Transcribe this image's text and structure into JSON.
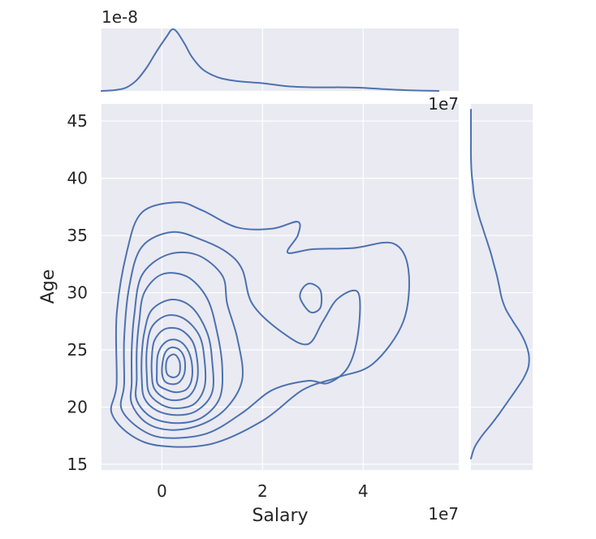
{
  "chart_data": {
    "type": "kde_jointplot",
    "x": {
      "label": "Salary",
      "lim": [
        -12000000,
        59000000
      ],
      "ticks": [
        0,
        20000000,
        40000000
      ],
      "tick_labels": [
        "0",
        "2",
        "4"
      ],
      "offset_text": "1e7"
    },
    "y": {
      "label": "Age",
      "lim": [
        14.5,
        46.5
      ],
      "ticks": [
        15,
        20,
        25,
        30,
        35,
        40,
        45
      ],
      "tick_labels": [
        "15",
        "20",
        "25",
        "30",
        "35",
        "40",
        "45"
      ]
    },
    "top_marginal": {
      "offset_text": "1e-8",
      "ylim": [
        0,
        6.1
      ],
      "density_x_1e7": [
        -1.2,
        -0.9,
        -0.7,
        -0.5,
        -0.3,
        -0.1,
        0.1,
        0.2,
        0.3,
        0.45,
        0.6,
        0.8,
        1.0,
        1.2,
        1.5,
        2.0,
        2.5,
        3.0,
        3.3,
        3.6,
        4.0,
        4.5,
        5.0,
        5.5
      ],
      "density_1e-8": [
        0.0,
        0.1,
        0.35,
        1.05,
        2.3,
        3.9,
        5.35,
        6.0,
        5.75,
        4.6,
        3.3,
        2.15,
        1.55,
        1.2,
        0.95,
        0.75,
        0.45,
        0.35,
        0.35,
        0.35,
        0.3,
        0.15,
        0.05,
        0.0
      ]
    },
    "right_marginal": {
      "density_y": [
        15.5,
        16.5,
        17.5,
        18.5,
        19.5,
        20.5,
        21.5,
        22.5,
        23.5,
        24.5,
        25.5,
        26.5,
        27.5,
        28.5,
        29.5,
        30.5,
        31.5,
        32.5,
        33.5,
        34.5,
        35.5,
        36.5,
        37.5,
        38.5,
        39.5,
        40.5,
        42,
        44,
        46
      ],
      "density": [
        0.0,
        0.06,
        0.18,
        0.33,
        0.47,
        0.6,
        0.73,
        0.85,
        0.93,
        0.94,
        0.89,
        0.8,
        0.68,
        0.57,
        0.5,
        0.46,
        0.42,
        0.37,
        0.32,
        0.26,
        0.2,
        0.14,
        0.09,
        0.05,
        0.03,
        0.01,
        0.0,
        0.0,
        0.0
      ]
    },
    "contours": [
      {
        "level": 1,
        "points": [
          [
            -0.9,
            22.0
          ],
          [
            -1.0,
            19.5
          ],
          [
            -0.6,
            17.5
          ],
          [
            0.0,
            16.6
          ],
          [
            1.0,
            16.8
          ],
          [
            2.0,
            18.8
          ],
          [
            2.8,
            21.5
          ],
          [
            3.5,
            22.6
          ],
          [
            4.2,
            23.8
          ],
          [
            4.8,
            27.5
          ],
          [
            4.9,
            32.0
          ],
          [
            4.6,
            34.3
          ],
          [
            3.8,
            33.9
          ],
          [
            3.0,
            33.8
          ],
          [
            2.5,
            33.5
          ],
          [
            2.7,
            35.0
          ],
          [
            2.7,
            36.2
          ],
          [
            2.2,
            35.6
          ],
          [
            1.5,
            35.7
          ],
          [
            0.8,
            37.2
          ],
          [
            0.3,
            37.9
          ],
          [
            -0.4,
            37.0
          ],
          [
            -0.7,
            33.5
          ],
          [
            -0.9,
            28.0
          ]
        ]
      },
      {
        "level": 2,
        "points": [
          [
            -0.75,
            22.0
          ],
          [
            -0.8,
            19.8
          ],
          [
            -0.4,
            18.0
          ],
          [
            0.1,
            17.3
          ],
          [
            0.9,
            17.7
          ],
          [
            1.6,
            19.5
          ],
          [
            2.2,
            21.5
          ],
          [
            2.9,
            22.3
          ],
          [
            3.3,
            22.1
          ],
          [
            3.7,
            23.5
          ],
          [
            3.9,
            26.5
          ],
          [
            3.9,
            30.0
          ],
          [
            3.5,
            29.5
          ],
          [
            3.2,
            27.5
          ],
          [
            2.9,
            25.5
          ],
          [
            2.4,
            26.5
          ],
          [
            1.8,
            29.0
          ],
          [
            1.6,
            32.0
          ],
          [
            1.3,
            33.5
          ],
          [
            0.8,
            34.6
          ],
          [
            0.2,
            35.3
          ],
          [
            -0.4,
            34.0
          ],
          [
            -0.65,
            30.5
          ],
          [
            -0.75,
            26.0
          ]
        ]
      },
      {
        "level": 3,
        "points": [
          [
            -0.6,
            22.2
          ],
          [
            -0.6,
            20.3
          ],
          [
            -0.3,
            18.6
          ],
          [
            0.2,
            18.0
          ],
          [
            0.8,
            18.5
          ],
          [
            1.3,
            20.0
          ],
          [
            1.6,
            22.5
          ],
          [
            1.5,
            26.0
          ],
          [
            1.3,
            29.0
          ],
          [
            1.2,
            31.5
          ],
          [
            0.7,
            33.3
          ],
          [
            0.1,
            33.3
          ],
          [
            -0.4,
            31.5
          ],
          [
            -0.55,
            28.0
          ],
          [
            -0.6,
            25.0
          ]
        ]
      },
      {
        "level": 4,
        "points": [
          [
            -0.5,
            22.5
          ],
          [
            -0.5,
            20.6
          ],
          [
            -0.2,
            19.1
          ],
          [
            0.3,
            18.6
          ],
          [
            0.8,
            19.1
          ],
          [
            1.15,
            20.8
          ],
          [
            1.2,
            23.5
          ],
          [
            1.1,
            26.5
          ],
          [
            0.9,
            29.5
          ],
          [
            0.5,
            31.4
          ],
          [
            0.0,
            31.6
          ],
          [
            -0.35,
            30.0
          ],
          [
            -0.45,
            27.5
          ],
          [
            -0.5,
            25.0
          ]
        ]
      },
      {
        "level": 5,
        "points": [
          [
            -0.4,
            22.5
          ],
          [
            -0.35,
            20.8
          ],
          [
            -0.1,
            19.7
          ],
          [
            0.3,
            19.3
          ],
          [
            0.7,
            19.7
          ],
          [
            1.0,
            21.3
          ],
          [
            1.0,
            24.0
          ],
          [
            0.9,
            26.5
          ],
          [
            0.6,
            28.7
          ],
          [
            0.2,
            29.4
          ],
          [
            -0.2,
            28.5
          ],
          [
            -0.35,
            26.5
          ],
          [
            -0.4,
            24.5
          ]
        ]
      },
      {
        "level": 6,
        "points": [
          [
            -0.3,
            22.8
          ],
          [
            -0.25,
            21.2
          ],
          [
            0.0,
            20.2
          ],
          [
            0.3,
            19.9
          ],
          [
            0.65,
            20.3
          ],
          [
            0.85,
            21.8
          ],
          [
            0.85,
            24.0
          ],
          [
            0.75,
            26.2
          ],
          [
            0.45,
            27.7
          ],
          [
            0.1,
            28.0
          ],
          [
            -0.2,
            27.0
          ],
          [
            -0.3,
            25.0
          ]
        ]
      },
      {
        "level": 7,
        "points": [
          [
            -0.2,
            22.8
          ],
          [
            -0.15,
            21.6
          ],
          [
            0.05,
            20.8
          ],
          [
            0.3,
            20.6
          ],
          [
            0.55,
            21.0
          ],
          [
            0.7,
            22.3
          ],
          [
            0.7,
            24.2
          ],
          [
            0.6,
            25.8
          ],
          [
            0.35,
            26.8
          ],
          [
            0.05,
            26.8
          ],
          [
            -0.15,
            25.8
          ],
          [
            -0.2,
            24.3
          ]
        ]
      },
      {
        "level": 8,
        "points": [
          [
            -0.1,
            23.0
          ],
          [
            -0.08,
            22.0
          ],
          [
            0.1,
            21.5
          ],
          [
            0.3,
            21.3
          ],
          [
            0.5,
            21.6
          ],
          [
            0.6,
            22.6
          ],
          [
            0.58,
            24.2
          ],
          [
            0.45,
            25.4
          ],
          [
            0.25,
            25.9
          ],
          [
            0.05,
            25.6
          ],
          [
            -0.08,
            24.6
          ]
        ]
      },
      {
        "level": 9,
        "points": [
          [
            0.0,
            23.2
          ],
          [
            0.05,
            22.3
          ],
          [
            0.2,
            22.0
          ],
          [
            0.35,
            22.2
          ],
          [
            0.45,
            23.0
          ],
          [
            0.45,
            24.2
          ],
          [
            0.35,
            25.0
          ],
          [
            0.18,
            25.2
          ],
          [
            0.05,
            24.6
          ]
        ]
      },
      {
        "level": 10,
        "points": [
          [
            0.08,
            23.5
          ],
          [
            0.12,
            22.8
          ],
          [
            0.25,
            22.6
          ],
          [
            0.35,
            23.0
          ],
          [
            0.35,
            24.0
          ],
          [
            0.25,
            24.6
          ],
          [
            0.12,
            24.3
          ]
        ]
      },
      {
        "level": 11,
        "points": [
          [
            2.75,
            29.5
          ],
          [
            2.95,
            28.3
          ],
          [
            3.15,
            28.7
          ],
          [
            3.15,
            30.2
          ],
          [
            2.95,
            30.8
          ],
          [
            2.8,
            30.4
          ]
        ]
      }
    ]
  }
}
